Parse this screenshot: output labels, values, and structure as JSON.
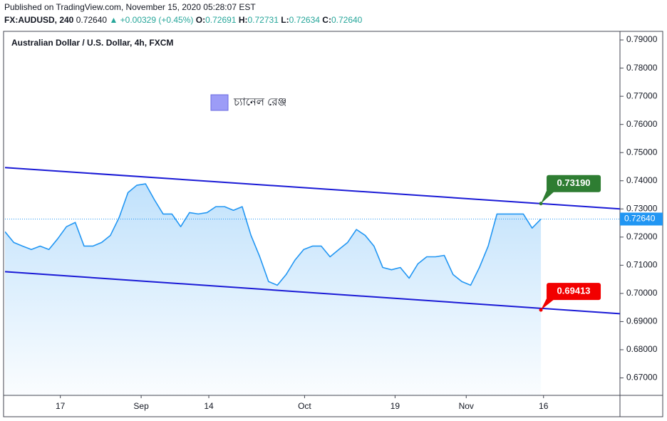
{
  "header": {
    "published": "Published on TradingView.com, November 15, 2020 05:28:07 EST",
    "symbol": "FX:AUDUSD, 240",
    "price": "0.72640",
    "change": "▲ +0.00329 (+0.45%)",
    "ohlc": [
      {
        "label": "O:",
        "value": "0.72691"
      },
      {
        "label": "H:",
        "value": "0.72731"
      },
      {
        "label": "L:",
        "value": "0.72634"
      },
      {
        "label": "C:",
        "value": "0.72640"
      }
    ]
  },
  "chart_data": {
    "type": "line",
    "title": "Australian Dollar / U.S. Dollar, 4h, FXCM",
    "xlim": [
      0,
      70
    ],
    "xticks": [
      {
        "value": 6.3,
        "label": "17"
      },
      {
        "value": 15.5,
        "label": "Sep"
      },
      {
        "value": 23.2,
        "label": "14"
      },
      {
        "value": 34.1,
        "label": "Oct"
      },
      {
        "value": 44.4,
        "label": "19"
      },
      {
        "value": 52.5,
        "label": "Nov"
      },
      {
        "value": 61.3,
        "label": "16"
      }
    ],
    "ylim": [
      0.6638,
      0.7928
    ],
    "yticks": [
      {
        "value": 0.67,
        "label": "0.67000"
      },
      {
        "value": 0.68,
        "label": "0.68000"
      },
      {
        "value": 0.69,
        "label": "0.69000"
      },
      {
        "value": 0.7,
        "label": "0.70000"
      },
      {
        "value": 0.71,
        "label": "0.71000"
      },
      {
        "value": 0.72,
        "label": "0.72000"
      },
      {
        "value": 0.73,
        "label": "0.73000"
      },
      {
        "value": 0.74,
        "label": "0.74000"
      },
      {
        "value": 0.75,
        "label": "0.75000"
      },
      {
        "value": 0.76,
        "label": "0.76000"
      },
      {
        "value": 0.77,
        "label": "0.77000"
      },
      {
        "value": 0.78,
        "label": "0.78000"
      },
      {
        "value": 0.79,
        "label": "0.79000"
      }
    ],
    "grid": false,
    "series": [
      {
        "color": "#2196f3",
        "values": [
          0.7219,
          0.7181,
          0.7168,
          0.7156,
          0.7168,
          0.7156,
          0.7194,
          0.7237,
          0.7252,
          0.7168,
          0.7168,
          0.7181,
          0.7206,
          0.727,
          0.7358,
          0.7384,
          0.7389,
          0.7333,
          0.7282,
          0.7282,
          0.7237,
          0.7287,
          0.7282,
          0.7287,
          0.7308,
          0.7308,
          0.7295,
          0.7308,
          0.7206,
          0.713,
          0.7042,
          0.7029,
          0.7067,
          0.7118,
          0.7156,
          0.7168,
          0.7168,
          0.713,
          0.7156,
          0.7181,
          0.7227,
          0.7206,
          0.7168,
          0.7092,
          0.7084,
          0.7092,
          0.7054,
          0.7105,
          0.713,
          0.713,
          0.7135,
          0.7067,
          0.7042,
          0.7029,
          0.7092,
          0.7168,
          0.7282,
          0.7282,
          0.7282,
          0.7282,
          0.7232,
          0.7264
        ]
      }
    ],
    "last_price": {
      "value": 0.7264,
      "label": "0.72640",
      "color": "#2196f3"
    },
    "channel": [
      {
        "color": "#1a1ad6",
        "x": [
          0,
          70
        ],
        "values": [
          0.74468,
          0.73
        ]
      },
      {
        "color": "#1a1ad6",
        "x": [
          0,
          70
        ],
        "values": [
          0.70772,
          0.69278
        ]
      }
    ],
    "markers": {
      "x": [
        61,
        61
      ],
      "values": [
        0.7319,
        0.69413
      ],
      "value_labels": [
        "0.73190",
        "0.69413"
      ],
      "colors": [
        "#2e7d32",
        "#f20000"
      ]
    },
    "legend": {
      "label": "চ্যানেল রেঞ্জ",
      "color": "#9c9cf7"
    }
  }
}
